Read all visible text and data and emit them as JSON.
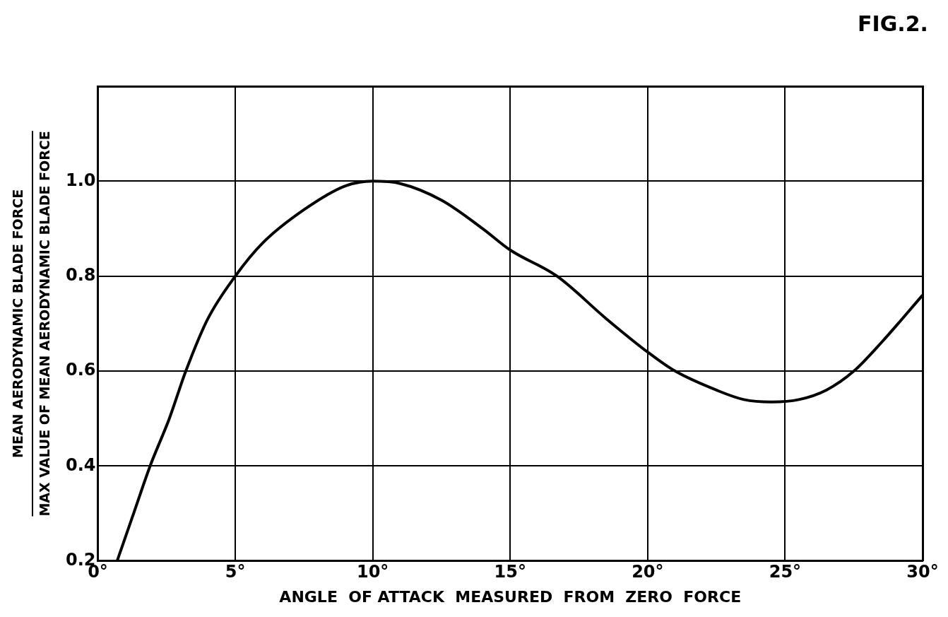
{
  "chart_data": {
    "type": "line",
    "title": "FIG.2.",
    "xlabel": "ANGLE  OF ATTACK  MEASURED  FROM  ZERO  FORCE",
    "ylabel": "MEAN AERODYNAMIC BLADE FORCE\nMAX VALUE OF MEAN AERODYNAMIC BLADE FORCE",
    "x": [
      0.7,
      1.3,
      1.9,
      2.6,
      3.2,
      4.0,
      5.0,
      6.0,
      7.5,
      9.0,
      10.0,
      11.0,
      12.5,
      14.0,
      15.0,
      16.7,
      18.5,
      20.0,
      21.0,
      22.5,
      23.5,
      24.5,
      25.5,
      26.5,
      27.5,
      28.5,
      30.0
    ],
    "values": [
      0.2,
      0.3,
      0.4,
      0.5,
      0.6,
      0.71,
      0.8,
      0.87,
      0.94,
      0.99,
      1.0,
      0.995,
      0.96,
      0.9,
      0.855,
      0.8,
      0.71,
      0.64,
      0.6,
      0.56,
      0.54,
      0.535,
      0.54,
      0.56,
      0.6,
      0.66,
      0.76
    ],
    "color": "#000000",
    "xlim": [
      0,
      30
    ],
    "ylim": [
      0.2,
      1.2
    ],
    "xticks": [
      {
        "value": 0,
        "label": "0°"
      },
      {
        "value": 5,
        "label": "5°"
      },
      {
        "value": 10,
        "label": "10°"
      },
      {
        "value": 15,
        "label": "15°"
      },
      {
        "value": 20,
        "label": "20°"
      },
      {
        "value": 25,
        "label": "25°"
      },
      {
        "value": 30,
        "label": "30°"
      }
    ],
    "yticks": [
      {
        "value": 0.2,
        "label": "0.2"
      },
      {
        "value": 0.4,
        "label": "0.4"
      },
      {
        "value": 0.6,
        "label": "0.6"
      },
      {
        "value": 0.8,
        "label": "0.8"
      },
      {
        "value": 1.0,
        "label": "1.0"
      }
    ],
    "grid": true,
    "legend": false,
    "marker": "none",
    "line_style": "solid"
  }
}
